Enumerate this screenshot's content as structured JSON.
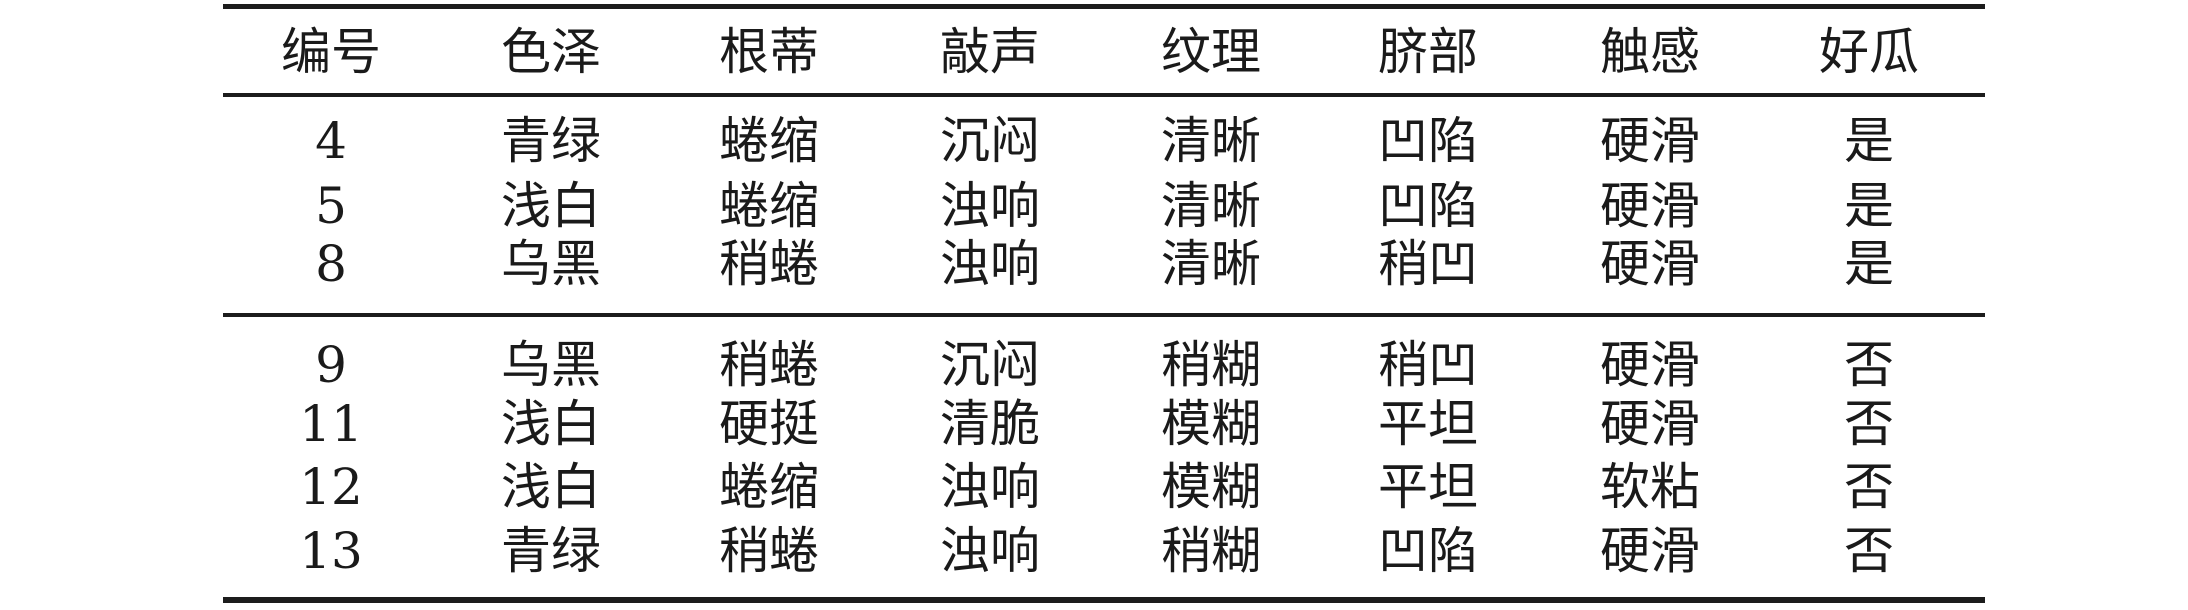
{
  "table": {
    "headers": [
      "编号",
      "色泽",
      "根蒂",
      "敲声",
      "纹理",
      "脐部",
      "触感",
      "好瓜"
    ],
    "group1": [
      [
        "4",
        "青绿",
        "蜷缩",
        "沉闷",
        "清晰",
        "凹陷",
        "硬滑",
        "是"
      ],
      [
        "5",
        "浅白",
        "蜷缩",
        "浊响",
        "清晰",
        "凹陷",
        "硬滑",
        "是"
      ],
      [
        "8",
        "乌黑",
        "稍蜷",
        "浊响",
        "清晰",
        "稍凹",
        "硬滑",
        "是"
      ]
    ],
    "group2": [
      [
        "9",
        "乌黑",
        "稍蜷",
        "沉闷",
        "稍糊",
        "稍凹",
        "硬滑",
        "否"
      ],
      [
        "11",
        "浅白",
        "硬挺",
        "清脆",
        "模糊",
        "平坦",
        "硬滑",
        "否"
      ],
      [
        "12",
        "浅白",
        "蜷缩",
        "浊响",
        "模糊",
        "平坦",
        "软粘",
        "否"
      ],
      [
        "13",
        "青绿",
        "稍蜷",
        "浊响",
        "稍糊",
        "凹陷",
        "硬滑",
        "否"
      ]
    ]
  }
}
